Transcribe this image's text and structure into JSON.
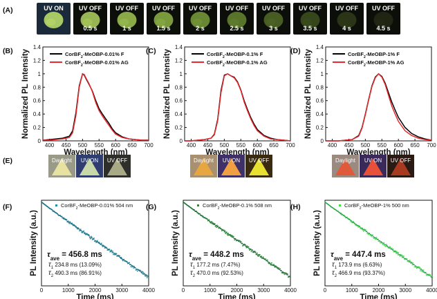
{
  "panel_labels": [
    "(A)",
    "(B)",
    "(C)",
    "(D)",
    "(E)",
    "(F)",
    "(G)",
    "(H)"
  ],
  "strip_a": {
    "frames": [
      {
        "label": "UV ON",
        "time": "",
        "glow": "#b8d86a"
      },
      {
        "label": "UV OFF",
        "time": "0.5 s",
        "glow": "#a6c85a"
      },
      {
        "label": "UV OFF",
        "time": "1 s",
        "glow": "#97bb4e"
      },
      {
        "label": "UV OFF",
        "time": "1.5 s",
        "glow": "#86a942"
      },
      {
        "label": "UV OFF",
        "time": "2 s",
        "glow": "#739438"
      },
      {
        "label": "UV OFF",
        "time": "2.5 s",
        "glow": "#617e2e"
      },
      {
        "label": "UV OFF",
        "time": "3 s",
        "glow": "#4d6525"
      },
      {
        "label": "UV OFF",
        "time": "3.5 s",
        "glow": "#3b4d1d"
      },
      {
        "label": "UV OFF",
        "time": "4 s",
        "glow": "#2d3818"
      },
      {
        "label": "UV OFF",
        "time": "4.5 s",
        "glow": "#222814"
      }
    ]
  },
  "panel_e_groups": [
    [
      {
        "label": "Daylight",
        "bg": "#9a9a88",
        "tri": "#e8e2a0"
      },
      {
        "label": "UV ON",
        "bg": "#2f3d70",
        "tri": "#c8d8a8"
      },
      {
        "label": "UV OFF",
        "bg": "#2e2f2a",
        "tri": "#a8aa86"
      }
    ],
    [
      {
        "label": "Daylight",
        "bg": "#a89070",
        "tri": "#e8a640"
      },
      {
        "label": "UV ON",
        "bg": "#40306a",
        "tri": "#f0a040"
      },
      {
        "label": "UV OFF",
        "bg": "#3a2a10",
        "tri": "#e8e030"
      }
    ],
    [
      {
        "label": "Daylight",
        "bg": "#9a8a80",
        "tri": "#e05a3a"
      },
      {
        "label": "UV ON",
        "bg": "#3a2a5a",
        "tri": "#e8503a"
      },
      {
        "label": "UV OFF",
        "bg": "#2a1a14",
        "tri": "#a83a20"
      }
    ]
  ],
  "chart_data": [
    {
      "panel": "(B)",
      "type": "line",
      "xlabel": "Wavelength (nm)",
      "ylabel": "Normalized PL Intensity",
      "xlim": [
        380,
        700
      ],
      "ylim": [
        0,
        1.4
      ],
      "xticks": [
        400,
        450,
        500,
        550,
        600,
        650,
        700
      ],
      "yticks": [
        0.0,
        0.2,
        0.4,
        0.6,
        0.8,
        1.0,
        1.2,
        1.4
      ],
      "series": [
        {
          "name": "CorBF2-MeOBP-0.01% F",
          "color": "#000000",
          "x": [
            380,
            400,
            420,
            440,
            460,
            470,
            480,
            490,
            500,
            505,
            510,
            520,
            530,
            540,
            550,
            560,
            570,
            580,
            590,
            600,
            620,
            640,
            660,
            680,
            700
          ],
          "y": [
            0.01,
            0.02,
            0.03,
            0.04,
            0.07,
            0.15,
            0.42,
            0.82,
            1.0,
            0.98,
            0.93,
            0.84,
            0.74,
            0.6,
            0.48,
            0.4,
            0.33,
            0.26,
            0.18,
            0.12,
            0.06,
            0.03,
            0.02,
            0.01,
            0.01
          ]
        },
        {
          "name": "CorBF2-MeOBP-0.01% AG",
          "color": "#e8282c",
          "x": [
            380,
            400,
            420,
            440,
            460,
            470,
            480,
            490,
            500,
            505,
            510,
            520,
            530,
            540,
            550,
            560,
            570,
            580,
            590,
            600,
            620,
            640,
            660,
            680,
            700
          ],
          "y": [
            0.01,
            0.01,
            0.02,
            0.03,
            0.05,
            0.12,
            0.38,
            0.8,
            1.0,
            0.99,
            0.94,
            0.85,
            0.73,
            0.57,
            0.45,
            0.37,
            0.3,
            0.23,
            0.16,
            0.1,
            0.05,
            0.03,
            0.02,
            0.01,
            0.01
          ]
        }
      ]
    },
    {
      "panel": "(C)",
      "type": "line",
      "xlabel": "Wavelength (nm)",
      "ylabel": "Normalized PL Intensity",
      "xlim": [
        380,
        700
      ],
      "ylim": [
        0,
        1.4
      ],
      "xticks": [
        400,
        450,
        500,
        550,
        600,
        650,
        700
      ],
      "yticks": [
        0.0,
        0.2,
        0.4,
        0.6,
        0.8,
        1.0,
        1.2,
        1.4
      ],
      "series": [
        {
          "name": "CorBF2-MeOBP-0.1% F",
          "color": "#000000",
          "x": [
            380,
            400,
            420,
            440,
            460,
            470,
            480,
            490,
            500,
            510,
            520,
            530,
            540,
            550,
            560,
            570,
            580,
            590,
            600,
            620,
            640,
            660,
            680,
            700
          ],
          "y": [
            0.0,
            0.0,
            0.01,
            0.02,
            0.04,
            0.1,
            0.32,
            0.75,
            0.98,
            1.0,
            0.97,
            0.95,
            0.88,
            0.76,
            0.6,
            0.47,
            0.35,
            0.25,
            0.17,
            0.08,
            0.04,
            0.02,
            0.01,
            0.0
          ]
        },
        {
          "name": "CorBF2-MeOBP-0.1% AG",
          "color": "#e8282c",
          "x": [
            380,
            400,
            420,
            440,
            460,
            470,
            480,
            490,
            500,
            510,
            520,
            530,
            540,
            550,
            560,
            570,
            580,
            590,
            600,
            620,
            640,
            660,
            680,
            700
          ],
          "y": [
            0.0,
            0.0,
            0.01,
            0.02,
            0.04,
            0.09,
            0.3,
            0.72,
            0.97,
            1.0,
            0.97,
            0.94,
            0.87,
            0.75,
            0.58,
            0.45,
            0.33,
            0.23,
            0.15,
            0.07,
            0.03,
            0.02,
            0.01,
            0.0
          ]
        }
      ]
    },
    {
      "panel": "(D)",
      "type": "line",
      "xlabel": "Wavelength (nm)",
      "ylabel": "Normalized PL Intensity",
      "xlim": [
        380,
        700
      ],
      "ylim": [
        0,
        1.4
      ],
      "xticks": [
        400,
        450,
        500,
        550,
        600,
        650,
        700
      ],
      "yticks": [
        0.0,
        0.2,
        0.4,
        0.6,
        0.8,
        1.0,
        1.2,
        1.4
      ],
      "series": [
        {
          "name": "CorBF2-MeOBP-1% F",
          "color": "#000000",
          "x": [
            380,
            400,
            420,
            440,
            460,
            480,
            490,
            500,
            510,
            520,
            530,
            540,
            550,
            560,
            570,
            580,
            590,
            600,
            620,
            640,
            660,
            680,
            700
          ],
          "y": [
            0.0,
            0.0,
            0.0,
            0.01,
            0.02,
            0.08,
            0.2,
            0.4,
            0.62,
            0.82,
            0.95,
            1.0,
            0.96,
            0.86,
            0.72,
            0.58,
            0.46,
            0.35,
            0.2,
            0.11,
            0.06,
            0.03,
            0.01
          ]
        },
        {
          "name": "CorBF2-MeOBP-1% AG",
          "color": "#e8282c",
          "x": [
            380,
            400,
            420,
            440,
            460,
            480,
            490,
            500,
            510,
            520,
            530,
            540,
            550,
            560,
            570,
            580,
            590,
            600,
            620,
            640,
            660,
            680,
            700
          ],
          "y": [
            0.0,
            0.0,
            0.0,
            0.01,
            0.02,
            0.07,
            0.19,
            0.39,
            0.61,
            0.81,
            0.94,
            1.0,
            0.95,
            0.84,
            0.68,
            0.52,
            0.4,
            0.29,
            0.15,
            0.08,
            0.04,
            0.02,
            0.01
          ]
        }
      ]
    },
    {
      "panel": "(F)",
      "type": "scatter",
      "xlabel": "Time (ms)",
      "ylabel": "PL Intensity (a.u.)",
      "xlim": [
        0,
        4000
      ],
      "xticks": [
        0,
        1000,
        2000,
        3000,
        4000
      ],
      "legend": "CorBF2-MeOBP-0.01% 504 nm",
      "color": "#2a8aa0",
      "decay": {
        "a1": 0.1309,
        "tau1": 234.8,
        "a2": 0.8691,
        "tau2": 490.3
      },
      "tau_ave": "456.8 ms",
      "tau1_text": "234.8 ms (13.09%)",
      "tau2_text": "490.3 ms (86.91%)"
    },
    {
      "panel": "(G)",
      "type": "scatter",
      "xlabel": "Time (ms)",
      "ylabel": "PL Intensity (a.u.)",
      "xlim": [
        0,
        4000
      ],
      "xticks": [
        0,
        1000,
        2000,
        3000,
        4000
      ],
      "legend": "CorBF2-MeOBP-0.1% 508 nm",
      "color": "#2f8a2f",
      "decay": {
        "a1": 0.0747,
        "tau1": 177.2,
        "a2": 0.9253,
        "tau2": 470.0
      },
      "tau_ave": "448.2 ms",
      "tau1_text": "177.2 ms (7.47%)",
      "tau2_text": "470.0 ms (92.53%)"
    },
    {
      "panel": "(H)",
      "type": "scatter",
      "xlabel": "Time (ms)",
      "ylabel": "PL Intensity (a.u.)",
      "xlim": [
        0,
        4000
      ],
      "xticks": [
        0,
        1000,
        2000,
        3000,
        4000
      ],
      "legend": "CorBF2-MeOBP-1% 500 nm",
      "color": "#46e04a",
      "decay": {
        "a1": 0.0663,
        "tau1": 173.9,
        "a2": 0.9337,
        "tau2": 466.9
      },
      "tau_ave": "447.4 ms",
      "tau1_text": "173.9 ms (6.63%)",
      "tau2_text": "466.9 ms (93.37%)"
    }
  ]
}
